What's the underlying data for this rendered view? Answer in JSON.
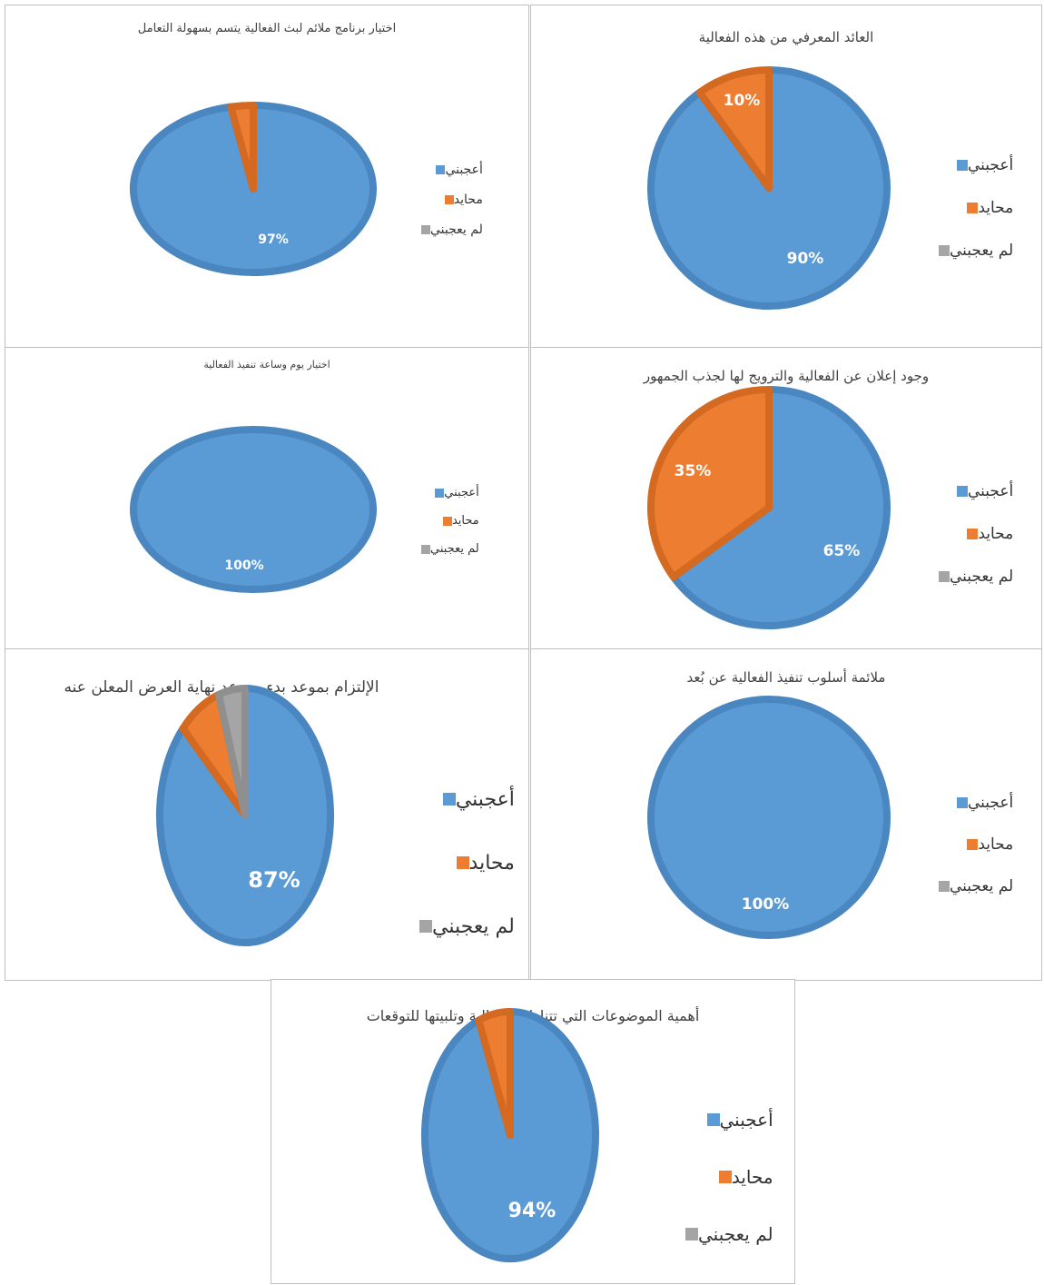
{
  "legend_labels": [
    "أعجبني",
    "محايد",
    "لم يعجبني"
  ],
  "colors": {
    "liked": "#5B9BD5",
    "neutral": "#ED7D31",
    "disliked": "#A5A5A5"
  },
  "chart_data": [
    {
      "type": "pie",
      "title": "اختيار برنامج ملائم لبث الفعالية يتسم بسهولة التعامل",
      "categories": [
        "أعجبني",
        "محايد",
        "لم يعجبني"
      ],
      "values": [
        97,
        3,
        0
      ],
      "data_labels": [
        "97%",
        "",
        ""
      ],
      "legend": "right"
    },
    {
      "type": "pie",
      "title": "العائد المعرفي من هذه الفعالية",
      "categories": [
        "أعجبني",
        "محايد",
        "لم يعجبني"
      ],
      "values": [
        90,
        10,
        0
      ],
      "data_labels": [
        "90%",
        "10%",
        ""
      ],
      "legend": "right"
    },
    {
      "type": "pie",
      "title": "اختيار يوم وساعة تنفيذ الفعالية",
      "categories": [
        "أعجبني",
        "محايد",
        "لم يعجبني"
      ],
      "values": [
        100,
        0,
        0
      ],
      "data_labels": [
        "100%",
        "",
        ""
      ],
      "legend": "right"
    },
    {
      "type": "pie",
      "title": "وجود إعلان عن الفعالية والترويج لها لجذب الجمهور",
      "categories": [
        "أعجبني",
        "محايد",
        "لم يعجبني"
      ],
      "values": [
        65,
        35,
        0
      ],
      "data_labels": [
        "65%",
        "35%",
        ""
      ],
      "legend": "right"
    },
    {
      "type": "pie",
      "title": "الإلتزام بموعد بدء وموعد نهاية العرض المعلن عنه",
      "categories": [
        "أعجبني",
        "محايد",
        "لم يعجبني"
      ],
      "values": [
        87,
        8,
        5
      ],
      "data_labels": [
        "87%",
        "",
        ""
      ],
      "legend": "right"
    },
    {
      "type": "pie",
      "title": "ملائمة أسلوب تنفيذ الفعالية عن بُعد",
      "categories": [
        "أعجبني",
        "محايد",
        "لم يعجبني"
      ],
      "values": [
        100,
        0,
        0
      ],
      "data_labels": [
        "100%",
        "",
        ""
      ],
      "legend": "right"
    },
    {
      "type": "pie",
      "title": "أهمية الموضوعات التي تتناولها الفعالية وتلبيتها للتوقعات",
      "categories": [
        "أعجبني",
        "محايد",
        "لم يعجبني"
      ],
      "values": [
        94,
        6,
        0
      ],
      "data_labels": [
        "94%",
        "",
        ""
      ],
      "legend": "right"
    }
  ]
}
